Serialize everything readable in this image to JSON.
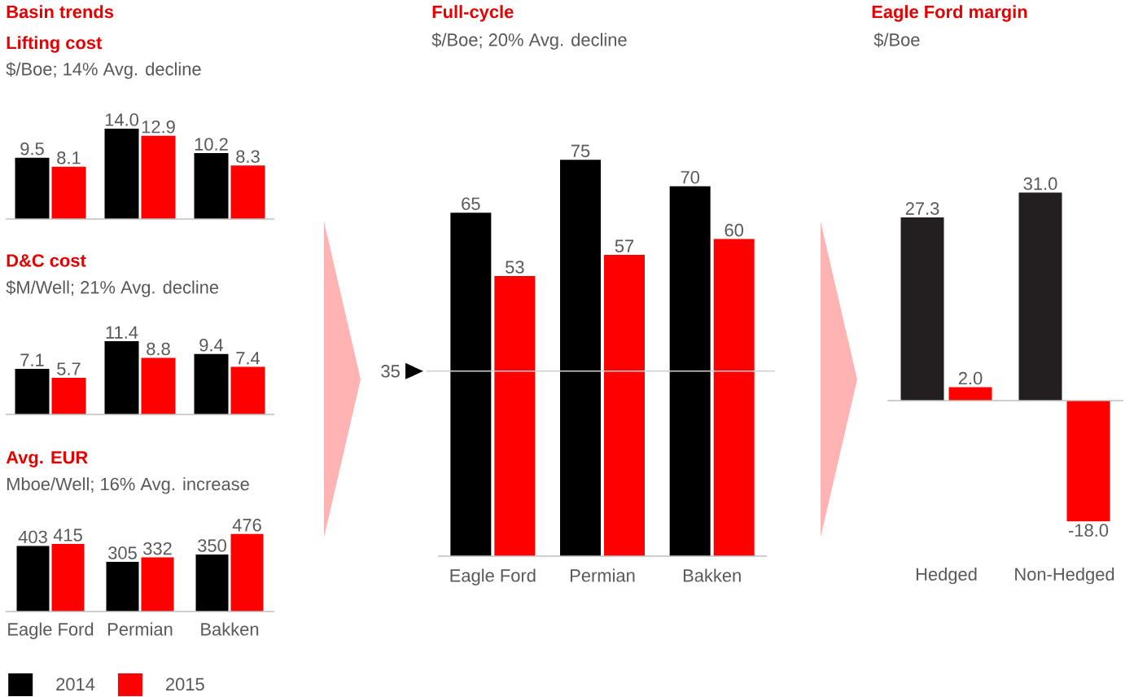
{
  "chart_data": [
    {
      "type": "bar",
      "title": "Lifting cost",
      "subtitle": "$/Boe; 14% Avg. decline",
      "annotations": [
        "Basin trends"
      ],
      "categories": [
        null,
        null,
        null
      ],
      "series": [
        {
          "color": "#000000",
          "values": [
            9.5,
            14.0,
            10.2
          ],
          "value_labels": [
            "9.5",
            "14.0",
            "10.2"
          ]
        },
        {
          "color": "#ff0000",
          "values": [
            8.1,
            12.9,
            8.3
          ],
          "value_labels": [
            "8.1",
            "12.9",
            "8.3"
          ]
        }
      ],
      "tick_labels": false
    },
    {
      "type": "bar",
      "title": "D&C cost",
      "subtitle": "$M/Well; 21% Avg. decline",
      "categories": [
        null,
        null,
        null
      ],
      "series": [
        {
          "color": "#000000",
          "values": [
            7.1,
            11.4,
            9.4
          ]
        },
        {
          "color": "#ff0000",
          "values": [
            5.7,
            8.8,
            7.4
          ]
        }
      ],
      "data_labels": true,
      "tick_labels": false
    },
    {
      "type": "bar",
      "title": "Avg. EUR",
      "subtitle": "Mboe/Well; 16% Avg. increase",
      "categories": [
        "Eagle Ford",
        "Permian",
        "Bakken"
      ],
      "series": [
        {
          "name": "2014",
          "color": "#000000",
          "values": [
            403,
            305,
            350
          ]
        },
        {
          "name": "2015",
          "color": "#ff0000",
          "values": [
            415,
            332,
            476
          ]
        }
      ],
      "data_labels": true,
      "legend": "bottom left"
    },
    {
      "type": "bar",
      "title": "Full-cycle",
      "subtitle": "$/Boe; 20% Avg. decline",
      "categories": [
        "Eagle Ford",
        "Permian",
        "Bakken"
      ],
      "series": [
        {
          "color": "#000000",
          "values": [
            65,
            75,
            70
          ]
        },
        {
          "color": "#ff0000",
          "values": [
            53,
            57,
            60
          ]
        }
      ],
      "data_labels": true,
      "ref_lines": [
        {
          "axis": "y",
          "value": 35,
          "label": "35"
        }
      ]
    },
    {
      "type": "bar",
      "title": "Eagle Ford margin",
      "subtitle": "$/Boe",
      "categories": [
        "Hedged",
        "Non-Hedged"
      ],
      "series": [
        {
          "color": "#231f20",
          "values": [
            27.3,
            31.0
          ],
          "value_labels": [
            "27.3",
            "31.0"
          ]
        },
        {
          "color": "#ff0000",
          "values": [
            2.0,
            -18.0
          ],
          "value_labels": [
            "2.0",
            "-18.0"
          ]
        }
      ]
    }
  ]
}
